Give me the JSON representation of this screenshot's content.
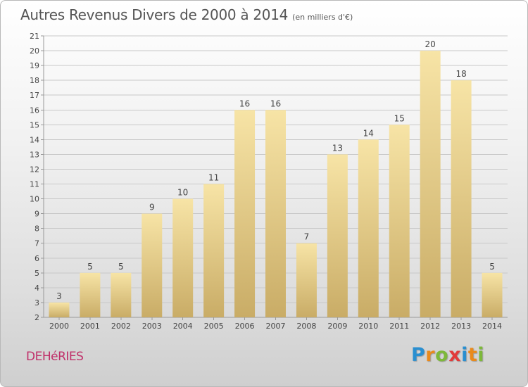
{
  "header": {
    "title": "Autres Revenus Divers de 2000 à 2014",
    "unit": "(en milliers d'€)"
  },
  "footer": {
    "commune": "DEHéRIES",
    "logo": [
      "P",
      "r",
      "o",
      "x",
      "i",
      "t",
      "i"
    ]
  },
  "colors": {
    "bar_light": "#f7e4a6",
    "bar_dark": "#c9ac66",
    "grid": "#c8c8c8",
    "text": "#444444",
    "commune": "#c0306a"
  },
  "chart_data": {
    "type": "bar",
    "title": "Autres Revenus Divers de 2000 à 2014",
    "subtitle": "(en milliers d'€)",
    "xlabel": "",
    "ylabel": "",
    "categories": [
      "2000",
      "2001",
      "2002",
      "2003",
      "2004",
      "2005",
      "2006",
      "2007",
      "2008",
      "2009",
      "2010",
      "2011",
      "2012",
      "2013",
      "2014"
    ],
    "values": [
      3,
      5,
      5,
      9,
      10,
      11,
      16,
      16,
      7,
      13,
      14,
      15,
      20,
      18,
      5
    ],
    "ylim": [
      2,
      21
    ],
    "yticks": [
      2,
      3,
      4,
      5,
      6,
      7,
      8,
      9,
      10,
      11,
      12,
      13,
      14,
      15,
      16,
      17,
      18,
      19,
      20,
      21
    ],
    "grid": true,
    "data_labels": true
  }
}
